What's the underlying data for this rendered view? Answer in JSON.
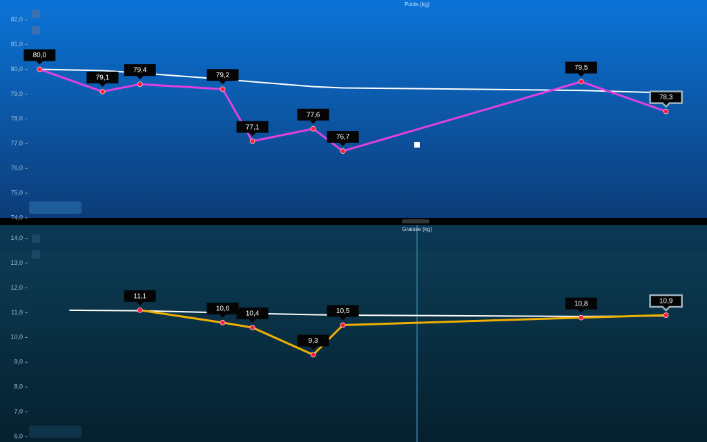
{
  "chart_data": [
    {
      "type": "line",
      "title": "Poids (kg)",
      "x": [
        5.6,
        14.5,
        19.8,
        31.5,
        35.7,
        44.3,
        48.5,
        82.2,
        94.2
      ],
      "xlim": [
        0,
        100
      ],
      "ylim": [
        74,
        82.8
      ],
      "yticks": [
        {
          "value": 74,
          "label": "74,0"
        },
        {
          "value": 75,
          "label": "75,0"
        },
        {
          "value": 76,
          "label": "76,0"
        },
        {
          "value": 77,
          "label": "77,0"
        },
        {
          "value": 78,
          "label": "78,0"
        },
        {
          "value": 79,
          "label": "79,0"
        },
        {
          "value": 80,
          "label": "80,0"
        },
        {
          "value": 81,
          "label": "81,0"
        },
        {
          "value": 82,
          "label": "82,0"
        }
      ],
      "series": [
        {
          "color": "#ffffff",
          "values": [
            80.0,
            79.95,
            79.85,
            79.6,
            79.5,
            79.3,
            79.25,
            79.15,
            79.05
          ]
        },
        {
          "color": "#e040e0",
          "values": [
            80.0,
            79.1,
            79.4,
            79.2,
            77.1,
            77.6,
            76.7,
            79.5,
            78.3
          ],
          "value_labels": [
            "80,0",
            "79,1",
            "79,4",
            "79,2",
            "77,1",
            "77,6",
            "76,7",
            "79,5",
            "78,3"
          ]
        }
      ]
    },
    {
      "type": "line",
      "title": "Graisse (kg)",
      "x": [
        9.8,
        19.8,
        31.5,
        35.7,
        44.3,
        48.5,
        82.2,
        94.2
      ],
      "xlim": [
        0,
        100
      ],
      "ylim": [
        6,
        14.55
      ],
      "yticks": [
        {
          "value": 6,
          "label": "6,0"
        },
        {
          "value": 7,
          "label": "7,0"
        },
        {
          "value": 8,
          "label": "8,0"
        },
        {
          "value": 9,
          "label": "9,0"
        },
        {
          "value": 10,
          "label": "10,0"
        },
        {
          "value": 11,
          "label": "11,0"
        },
        {
          "value": 12,
          "label": "12,0"
        },
        {
          "value": 13,
          "label": "13,0"
        },
        {
          "value": 14,
          "label": "14,0"
        }
      ],
      "series": [
        {
          "color": "#ffffff",
          "values": [
            11.1,
            11.08,
            11.0,
            10.97,
            10.92,
            10.9,
            10.85,
            10.87
          ]
        },
        {
          "color": "#f0b000",
          "values": [
            null,
            11.1,
            10.6,
            10.4,
            9.3,
            10.5,
            10.8,
            10.9
          ],
          "value_labels": [
            null,
            "11,1",
            "10,6",
            "10,4",
            "9,3",
            "10,5",
            "10,8",
            "10,9"
          ]
        }
      ]
    }
  ]
}
